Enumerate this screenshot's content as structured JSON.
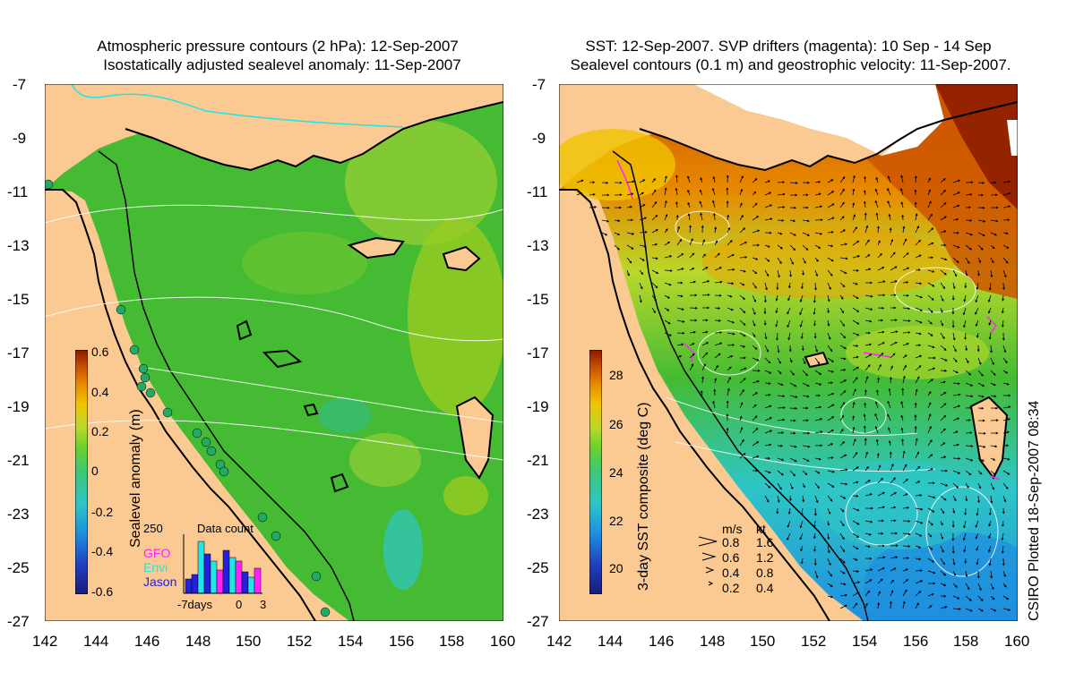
{
  "left_panel": {
    "title_line1": "Atmospheric pressure contours (2 hPa): 12-Sep-2007",
    "title_line2": "Isostatically adjusted sealevel anomaly: 11-Sep-2007",
    "colorbar": {
      "label": "Sealevel anomaly (m)",
      "ticks": [
        "0.6",
        "0.4",
        "0.2",
        "0",
        "-0.2",
        "-0.4",
        "-0.6"
      ],
      "colors": [
        "#1a1a7a",
        "#1f3fbf",
        "#1e8fe0",
        "#2ec6c6",
        "#3cc77a",
        "#6ad12f",
        "#b8d82a",
        "#f0c400",
        "#e88a00",
        "#c85000",
        "#8a1a00"
      ]
    },
    "inset": {
      "top_value": "250",
      "title": "Data count",
      "legend": [
        {
          "label": "GFO",
          "color": "#ff22ff"
        },
        {
          "label": "Envi",
          "color": "#22e5e5"
        },
        {
          "label": "Jason",
          "color": "#2222dd"
        }
      ],
      "x_ticks": [
        "-7days",
        "0",
        "3"
      ]
    }
  },
  "right_panel": {
    "title_line1": "SST: 12-Sep-2007. SVP drifters (magenta): 10 Sep - 14 Sep",
    "title_line2": "Sealevel contours (0.1 m) and geostrophic velocity: 11-Sep-2007.",
    "colorbar": {
      "label": "3-day SST composite (deg C)",
      "ticks": [
        "28",
        "26",
        "24",
        "22",
        "20"
      ],
      "colors": [
        "#1a1a7a",
        "#1f3fbf",
        "#1e8fe0",
        "#2ec6c6",
        "#3cc77a",
        "#6ad12f",
        "#b8d82a",
        "#f0c400",
        "#e88a00",
        "#c85000",
        "#8a1a00"
      ]
    },
    "velocity_key": {
      "header_ms": "m/s",
      "header_kt": "kt",
      "rows": [
        {
          "ms": "0.8",
          "kt": "1.6"
        },
        {
          "ms": "0.6",
          "kt": "1.2"
        },
        {
          "ms": "0.4",
          "kt": "0.8"
        },
        {
          "ms": "0.2",
          "kt": "0.4"
        }
      ]
    }
  },
  "axes": {
    "x_ticks": [
      "142",
      "144",
      "146",
      "148",
      "150",
      "152",
      "154",
      "156",
      "158",
      "160"
    ],
    "y_ticks": [
      "-7",
      "-9",
      "-11",
      "-13",
      "-15",
      "-17",
      "-19",
      "-21",
      "-23",
      "-25",
      "-27"
    ]
  },
  "credit": "CSIRO Plotted 18-Sep-2007 08:34",
  "colors": {
    "land": "#fbc992",
    "ocean_green": "#44bb33",
    "ocean_light": "#88cc33",
    "cloud": "#ffffff",
    "warm": "#cc5500"
  }
}
